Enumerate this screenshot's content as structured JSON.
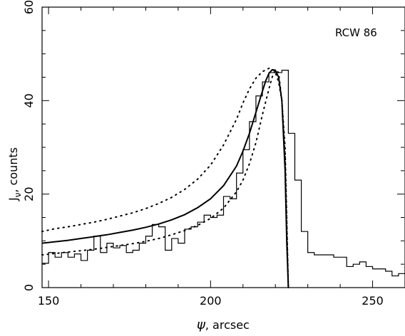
{
  "chart_data": {
    "type": "line",
    "annotation": "RCW 86",
    "xlabel_symbol": "ψ",
    "xlabel_text": ", arcsec",
    "ylabel_symbol": "J",
    "ylabel_sub": "ν",
    "ylabel_text": ", counts",
    "xlim": [
      148,
      260
    ],
    "ylim": [
      0,
      60
    ],
    "xticks": [
      150,
      200,
      250
    ],
    "yticks": [
      0,
      20,
      40,
      60
    ],
    "grid": false,
    "legend": "none",
    "series": [
      {
        "style": "histogram",
        "x": [
          148,
          150,
          152,
          154,
          156,
          158,
          160,
          162,
          164,
          166,
          168,
          170,
          172,
          174,
          176,
          178,
          180,
          182,
          184,
          186,
          188,
          190,
          192,
          194,
          196,
          198,
          200,
          202,
          204,
          206,
          208,
          210,
          212,
          214,
          216,
          218,
          220,
          222,
          224,
          226,
          228,
          230,
          232,
          234,
          236,
          238,
          240,
          242,
          244,
          246,
          248,
          250,
          252,
          254,
          256,
          258,
          260
        ],
        "y": [
          5.2,
          7.5,
          6.5,
          7.5,
          6.5,
          7.2,
          5.8,
          8.0,
          11.0,
          7.5,
          9.5,
          8.5,
          9.0,
          7.5,
          8.0,
          9.5,
          11.0,
          13.5,
          13.0,
          8.0,
          10.5,
          9.5,
          12.5,
          13.0,
          14.0,
          15.5,
          15.0,
          15.5,
          19.5,
          19.0,
          24.5,
          29.5,
          35.5,
          41.0,
          44.0,
          46.0,
          46.0,
          46.5,
          33.0,
          23.0,
          12.0,
          7.5,
          7.0,
          7.0,
          7.0,
          6.5,
          6.5,
          4.5,
          5.0,
          5.5,
          4.5,
          4.0,
          4.0,
          3.5,
          2.5,
          3.0,
          4.5
        ]
      },
      {
        "style": "solid",
        "x": [
          148,
          152,
          156,
          160,
          164,
          168,
          172,
          176,
          180,
          184,
          188,
          192,
          196,
          200,
          204,
          208,
          210,
          212,
          214,
          216,
          217,
          218,
          219,
          220,
          221,
          222,
          223,
          223.5,
          224
        ],
        "y": [
          9.5,
          9.8,
          10.1,
          10.5,
          10.9,
          11.3,
          11.8,
          12.3,
          12.9,
          13.6,
          14.5,
          15.6,
          17.1,
          19.0,
          21.8,
          26.0,
          29.2,
          33.0,
          37.5,
          42.0,
          44.2,
          45.8,
          46.6,
          46.5,
          45.0,
          40.0,
          25.0,
          10.0,
          0
        ]
      },
      {
        "style": "dotted",
        "x": [
          148,
          152,
          156,
          160,
          164,
          168,
          172,
          176,
          180,
          184,
          188,
          192,
          196,
          200,
          204,
          208,
          210,
          212,
          214,
          216,
          218,
          219,
          220,
          221,
          222,
          223,
          224
        ],
        "y": [
          12.0,
          12.6,
          13.0,
          13.5,
          14.0,
          14.6,
          15.3,
          16.0,
          16.9,
          18.0,
          19.3,
          21.0,
          23.2,
          26.2,
          30.5,
          36.0,
          39.5,
          42.5,
          44.8,
          46.2,
          46.9,
          46.8,
          46.0,
          44.0,
          40.0,
          30.0,
          0
        ]
      },
      {
        "style": "dotted",
        "x": [
          148,
          152,
          156,
          160,
          164,
          168,
          172,
          176,
          180,
          184,
          188,
          192,
          196,
          200,
          204,
          208,
          210,
          212,
          214,
          216,
          218,
          219,
          220,
          221,
          222,
          223,
          224
        ],
        "y": [
          7.0,
          7.3,
          7.6,
          7.9,
          8.2,
          8.6,
          9.0,
          9.4,
          9.9,
          10.5,
          11.3,
          12.2,
          13.3,
          14.8,
          17.0,
          20.5,
          23.0,
          26.5,
          31.0,
          37.0,
          42.5,
          45.0,
          46.5,
          46.0,
          40.0,
          28.0,
          0
        ]
      }
    ]
  }
}
